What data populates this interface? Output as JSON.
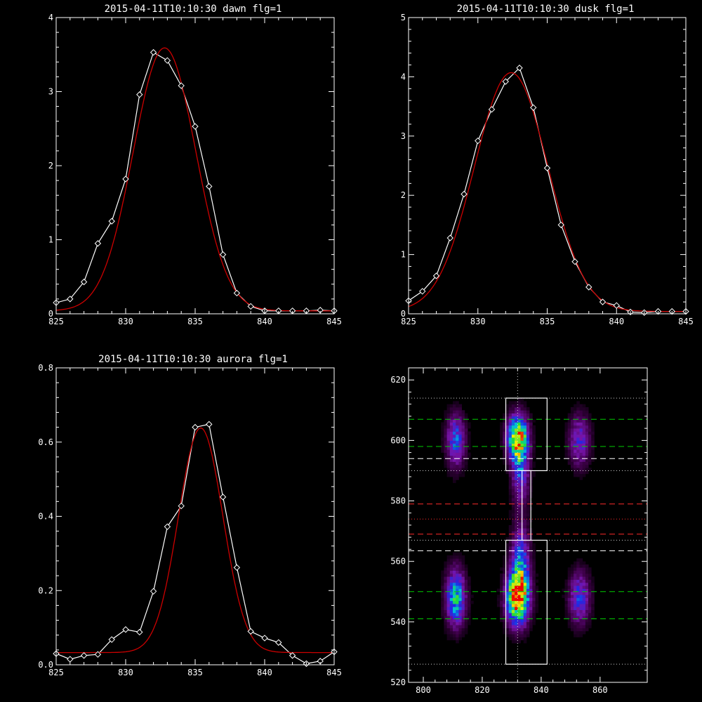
{
  "colors": {
    "background": "#000000",
    "axes": "#ffffff",
    "data_line": "#ffffff",
    "fit_line": "#cc0000",
    "peak_line": "#00cc00",
    "background_line": "#ff2a2a",
    "dotted_line": "#d0d0d0"
  },
  "chart_data": [
    {
      "id": "dawn",
      "type": "line",
      "title": "2015-04-11T10:10:30 dawn flg=1",
      "xlim": [
        825,
        845
      ],
      "ylim": [
        0,
        4
      ],
      "xticks": [
        825,
        830,
        835,
        840,
        845
      ],
      "yticks": [
        0,
        1,
        2,
        3,
        4
      ],
      "series": [
        {
          "role": "data",
          "marker": "diamond",
          "points": [
            [
              825,
              0.15
            ],
            [
              826,
              0.2
            ],
            [
              827,
              0.43
            ],
            [
              828,
              0.95
            ],
            [
              829,
              1.25
            ],
            [
              830,
              1.82
            ],
            [
              831,
              2.96
            ],
            [
              832,
              3.53
            ],
            [
              833,
              3.42
            ],
            [
              834,
              3.08
            ],
            [
              835,
              2.53
            ],
            [
              836,
              1.72
            ],
            [
              837,
              0.8
            ],
            [
              838,
              0.28
            ],
            [
              839,
              0.1
            ],
            [
              840,
              0.04
            ],
            [
              841,
              0.04
            ],
            [
              842,
              0.04
            ],
            [
              843,
              0.04
            ],
            [
              844,
              0.05
            ],
            [
              845,
              0.04
            ]
          ]
        },
        {
          "role": "fit",
          "model": "gaussian",
          "amplitude": 3.55,
          "center": 832.8,
          "sigma": 2.25,
          "baseline": 0.04
        }
      ]
    },
    {
      "id": "dusk",
      "type": "line",
      "title": "2015-04-11T10:10:30 dusk flg=1",
      "xlim": [
        825,
        845
      ],
      "ylim": [
        0,
        5
      ],
      "xticks": [
        825,
        830,
        835,
        840,
        845
      ],
      "yticks": [
        0,
        1,
        2,
        3,
        4,
        5
      ],
      "series": [
        {
          "role": "data",
          "marker": "diamond",
          "points": [
            [
              825,
              0.22
            ],
            [
              826,
              0.38
            ],
            [
              827,
              0.64
            ],
            [
              828,
              1.28
            ],
            [
              829,
              2.02
            ],
            [
              830,
              2.92
            ],
            [
              831,
              3.45
            ],
            [
              832,
              3.92
            ],
            [
              833,
              4.15
            ],
            [
              834,
              3.48
            ],
            [
              835,
              2.46
            ],
            [
              836,
              1.5
            ],
            [
              837,
              0.88
            ],
            [
              838,
              0.45
            ],
            [
              839,
              0.2
            ],
            [
              840,
              0.14
            ],
            [
              841,
              0.03
            ],
            [
              842,
              0.02
            ],
            [
              843,
              0.04
            ],
            [
              844,
              0.04
            ],
            [
              845,
              0.04
            ]
          ]
        },
        {
          "role": "fit",
          "model": "gaussian",
          "amplitude": 4.03,
          "center": 832.4,
          "sigma": 2.65,
          "baseline": 0.04
        }
      ]
    },
    {
      "id": "aurora",
      "type": "line",
      "title": "2015-04-11T10:10:30 aurora flg=1",
      "xlim": [
        825,
        845
      ],
      "ylim": [
        0,
        0.8
      ],
      "xticks": [
        825,
        830,
        835,
        840,
        845
      ],
      "yticks": [
        0,
        0.2,
        0.4,
        0.6,
        0.8
      ],
      "ytick_labels": [
        "0.0",
        "0.2",
        "0.4",
        "0.6",
        "0.8"
      ],
      "series": [
        {
          "role": "data",
          "marker": "diamond",
          "points": [
            [
              825,
              0.03
            ],
            [
              826,
              0.015
            ],
            [
              827,
              0.025
            ],
            [
              828,
              0.028
            ],
            [
              829,
              0.068
            ],
            [
              830,
              0.095
            ],
            [
              831,
              0.088
            ],
            [
              832,
              0.198
            ],
            [
              833,
              0.372
            ],
            [
              834,
              0.428
            ],
            [
              835,
              0.64
            ],
            [
              836,
              0.648
            ],
            [
              837,
              0.452
            ],
            [
              838,
              0.262
            ],
            [
              839,
              0.09
            ],
            [
              840,
              0.072
            ],
            [
              841,
              0.06
            ],
            [
              842,
              0.025
            ],
            [
              843,
              0.003
            ],
            [
              844,
              0.01
            ],
            [
              845,
              0.035
            ]
          ]
        },
        {
          "role": "fit",
          "model": "gaussian",
          "amplitude": 0.605,
          "center": 835.4,
          "sigma": 1.6,
          "baseline": 0.033
        }
      ]
    },
    {
      "id": "spectral-image",
      "type": "heatmap",
      "title": "",
      "xlim": [
        795,
        876
      ],
      "ylim": [
        520,
        624
      ],
      "xticks": [
        800,
        820,
        840,
        860
      ],
      "yticks": [
        520,
        540,
        560,
        580,
        600,
        620
      ],
      "colormap": "rainbow",
      "blobs": [
        {
          "x": 811,
          "y": 600,
          "sx": 2.2,
          "sy": 6,
          "amp": 0.45
        },
        {
          "x": 811,
          "y": 548,
          "sx": 2.3,
          "sy": 6.5,
          "amp": 0.6
        },
        {
          "x": 832,
          "y": 601,
          "sx": 2.4,
          "sy": 5,
          "amp": 0.85
        },
        {
          "x": 832,
          "y": 548,
          "sx": 2.6,
          "sy": 6,
          "amp": 1.0
        },
        {
          "x": 833,
          "y": 590,
          "sx": 2.0,
          "sy": 8,
          "amp": 0.4
        },
        {
          "x": 833,
          "y": 560,
          "sx": 2.2,
          "sy": 8,
          "amp": 0.45
        },
        {
          "x": 853,
          "y": 600,
          "sx": 2.5,
          "sy": 6,
          "amp": 0.35
        },
        {
          "x": 853,
          "y": 548,
          "sx": 2.5,
          "sy": 6,
          "amp": 0.4
        }
      ],
      "boxes": [
        {
          "x0": 828,
          "x1": 842,
          "y0": 590,
          "y1": 614
        },
        {
          "x0": 828,
          "x1": 842,
          "y0": 526,
          "y1": 567
        },
        {
          "x0": 833.5,
          "x1": 836.5,
          "y0": 567,
          "y1": 590
        }
      ],
      "hlines": [
        {
          "y": 614,
          "style": "dotted",
          "color": "dotted_line"
        },
        {
          "y": 607,
          "style": "dashed",
          "color": "peak_line"
        },
        {
          "y": 598,
          "style": "dashed",
          "color": "peak_line"
        },
        {
          "y": 594,
          "style": "dashed",
          "color": "data_line"
        },
        {
          "y": 590,
          "style": "dotted",
          "color": "dotted_line"
        },
        {
          "y": 579,
          "style": "dashed",
          "color": "background_line"
        },
        {
          "y": 574,
          "style": "dotted",
          "color": "background_line"
        },
        {
          "y": 569,
          "style": "dashed",
          "color": "background_line"
        },
        {
          "y": 567,
          "style": "dotted",
          "color": "dotted_line"
        },
        {
          "y": 563.5,
          "style": "dashed",
          "color": "data_line"
        },
        {
          "y": 550,
          "style": "dashed",
          "color": "peak_line"
        },
        {
          "y": 541,
          "style": "dashed",
          "color": "peak_line"
        },
        {
          "y": 526,
          "style": "dotted",
          "color": "dotted_line"
        }
      ],
      "vlines": [
        {
          "x": 832,
          "style": "dotted",
          "color": "dotted_line"
        }
      ]
    }
  ]
}
